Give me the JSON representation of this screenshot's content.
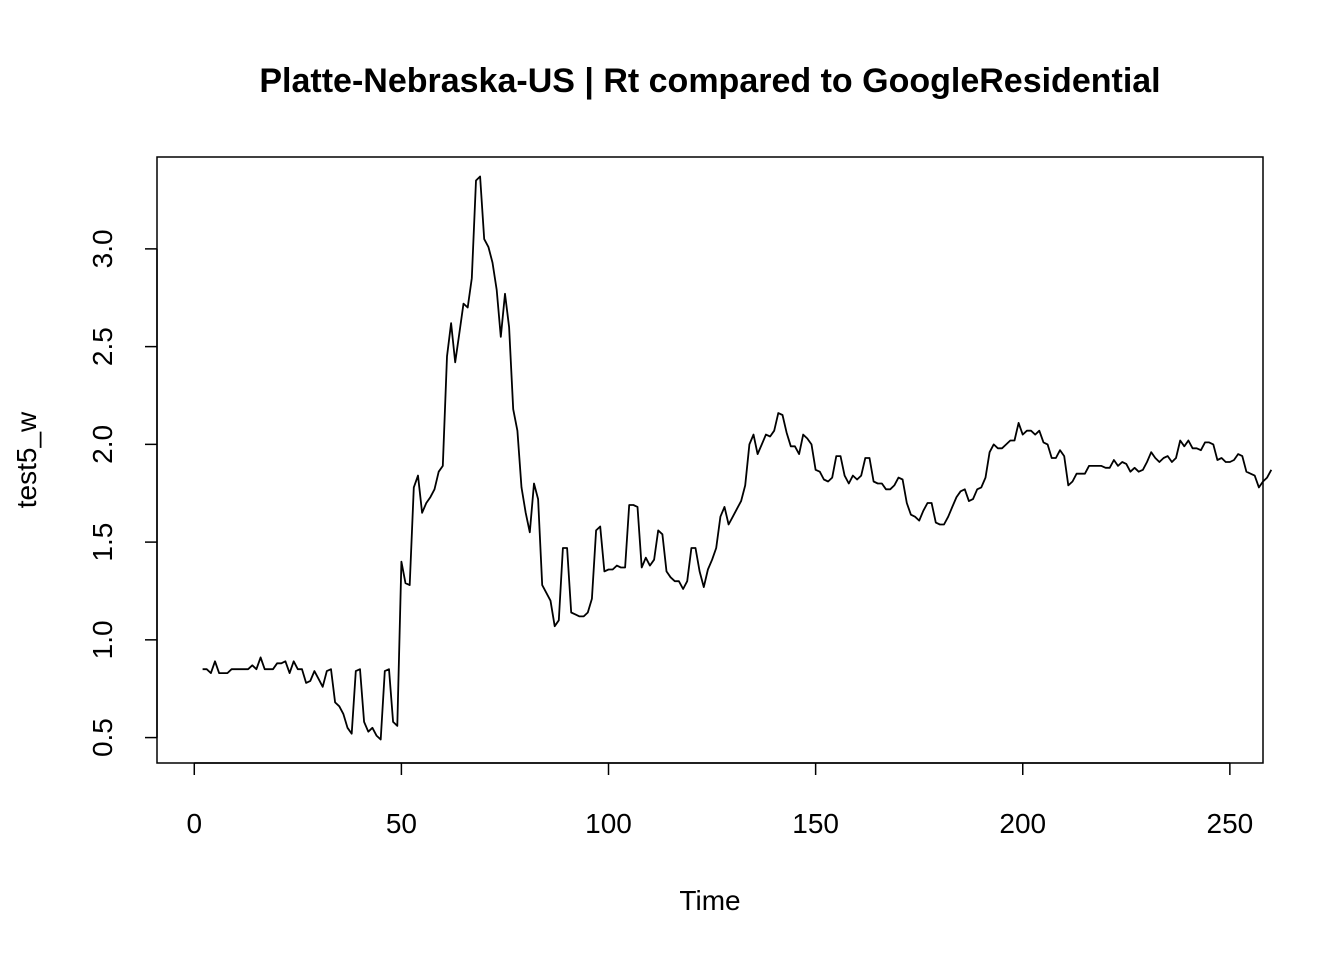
{
  "chart_data": {
    "type": "line",
    "title": "Platte-Nebraska-US | Rt compared to GoogleResidential",
    "xlabel": "Time",
    "ylabel": "test5_w",
    "xlim": [
      -9,
      258
    ],
    "ylim": [
      0.37,
      3.47
    ],
    "x_ticks": [
      0,
      50,
      100,
      150,
      200,
      250
    ],
    "y_ticks": [
      0.5,
      1.0,
      1.5,
      2.0,
      2.5,
      3.0
    ],
    "x_tick_labels": [
      "0",
      "50",
      "100",
      "150",
      "200",
      "250"
    ],
    "y_tick_labels": [
      "0.5",
      "1.0",
      "1.5",
      "2.0",
      "2.5",
      "3.0"
    ],
    "grid": false,
    "series": [
      {
        "name": "test5_w",
        "x_start": 2,
        "values": [
          0.85,
          0.85,
          0.83,
          0.89,
          0.83,
          0.83,
          0.83,
          0.85,
          0.85,
          0.85,
          0.85,
          0.85,
          0.87,
          0.85,
          0.91,
          0.85,
          0.85,
          0.85,
          0.88,
          0.88,
          0.89,
          0.83,
          0.89,
          0.85,
          0.85,
          0.78,
          0.79,
          0.84,
          0.8,
          0.76,
          0.84,
          0.85,
          0.68,
          0.66,
          0.62,
          0.55,
          0.52,
          0.84,
          0.85,
          0.58,
          0.53,
          0.55,
          0.51,
          0.49,
          0.84,
          0.85,
          0.58,
          0.56,
          1.4,
          1.29,
          1.28,
          1.78,
          1.84,
          1.65,
          1.7,
          1.73,
          1.77,
          1.86,
          1.89,
          2.45,
          2.62,
          2.42,
          2.57,
          2.72,
          2.7,
          2.85,
          3.35,
          3.37,
          3.05,
          3.01,
          2.93,
          2.79,
          2.55,
          2.77,
          2.6,
          2.18,
          2.07,
          1.78,
          1.65,
          1.55,
          1.8,
          1.72,
          1.28,
          1.24,
          1.2,
          1.07,
          1.1,
          1.47,
          1.47,
          1.14,
          1.13,
          1.12,
          1.12,
          1.14,
          1.21,
          1.56,
          1.58,
          1.35,
          1.36,
          1.36,
          1.38,
          1.37,
          1.37,
          1.69,
          1.69,
          1.68,
          1.37,
          1.42,
          1.38,
          1.41,
          1.56,
          1.54,
          1.35,
          1.32,
          1.3,
          1.3,
          1.26,
          1.3,
          1.47,
          1.47,
          1.35,
          1.27,
          1.36,
          1.41,
          1.47,
          1.63,
          1.68,
          1.59,
          1.63,
          1.67,
          1.71,
          1.79,
          2.0,
          2.05,
          1.95,
          2.0,
          2.05,
          2.04,
          2.07,
          2.16,
          2.15,
          2.06,
          1.99,
          1.99,
          1.95,
          2.05,
          2.03,
          2.0,
          1.87,
          1.86,
          1.82,
          1.81,
          1.83,
          1.94,
          1.94,
          1.84,
          1.8,
          1.84,
          1.82,
          1.84,
          1.93,
          1.93,
          1.81,
          1.8,
          1.8,
          1.77,
          1.77,
          1.79,
          1.83,
          1.82,
          1.7,
          1.64,
          1.63,
          1.61,
          1.66,
          1.7,
          1.7,
          1.6,
          1.59,
          1.59,
          1.63,
          1.68,
          1.73,
          1.76,
          1.77,
          1.71,
          1.72,
          1.77,
          1.78,
          1.83,
          1.96,
          2.0,
          1.98,
          1.98,
          2.0,
          2.02,
          2.02,
          2.11,
          2.05,
          2.07,
          2.07,
          2.05,
          2.07,
          2.01,
          2.0,
          1.93,
          1.93,
          1.97,
          1.94,
          1.79,
          1.81,
          1.85,
          1.85,
          1.85,
          1.89,
          1.89,
          1.89,
          1.89,
          1.88,
          1.88,
          1.92,
          1.89,
          1.91,
          1.9,
          1.86,
          1.88,
          1.86,
          1.87,
          1.91,
          1.96,
          1.93,
          1.91,
          1.93,
          1.94,
          1.91,
          1.93,
          2.02,
          1.99,
          2.02,
          1.98,
          1.98,
          1.97,
          2.01,
          2.01,
          2.0,
          1.92,
          1.93,
          1.91,
          1.91,
          1.92,
          1.95,
          1.94,
          1.86,
          1.85,
          1.84,
          1.78,
          1.81,
          1.83,
          1.87
        ]
      }
    ]
  }
}
